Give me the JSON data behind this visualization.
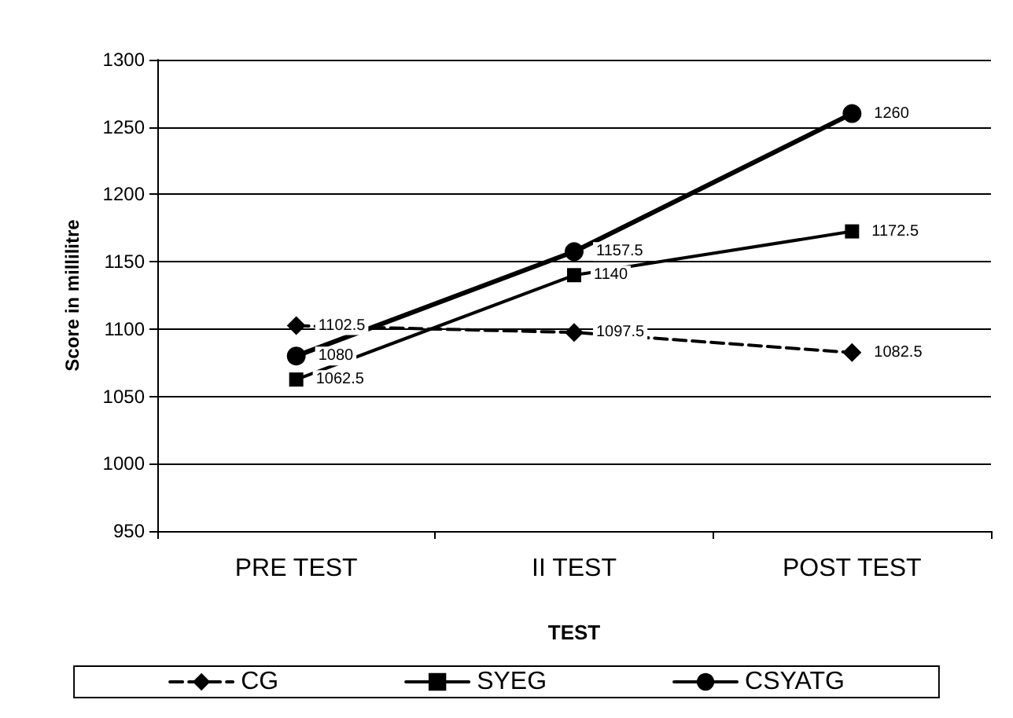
{
  "chart_data": {
    "type": "line",
    "xlabel": "TEST",
    "ylabel": "Score in millilitre",
    "categories": [
      "PRE TEST",
      "II TEST",
      "POST TEST"
    ],
    "series": [
      {
        "name": "CG",
        "color": "#000000",
        "marker": "diamond",
        "line_style": "dashed",
        "values": [
          1102.5,
          1097.5,
          1082.5
        ]
      },
      {
        "name": "SYEG",
        "color": "#000000",
        "marker": "square",
        "line_style": "solid",
        "values": [
          1062.5,
          1140,
          1172.5
        ]
      },
      {
        "name": "CSYATG",
        "color": "#000000",
        "marker": "circle",
        "line_style": "solid",
        "values": [
          1080,
          1157.5,
          1260
        ]
      }
    ],
    "ylim": [
      950,
      1300
    ],
    "yticks": [
      950,
      1000,
      1050,
      1100,
      1150,
      1200,
      1250,
      1300
    ],
    "grid": "y",
    "legend": "bottom",
    "data_labels": true
  }
}
